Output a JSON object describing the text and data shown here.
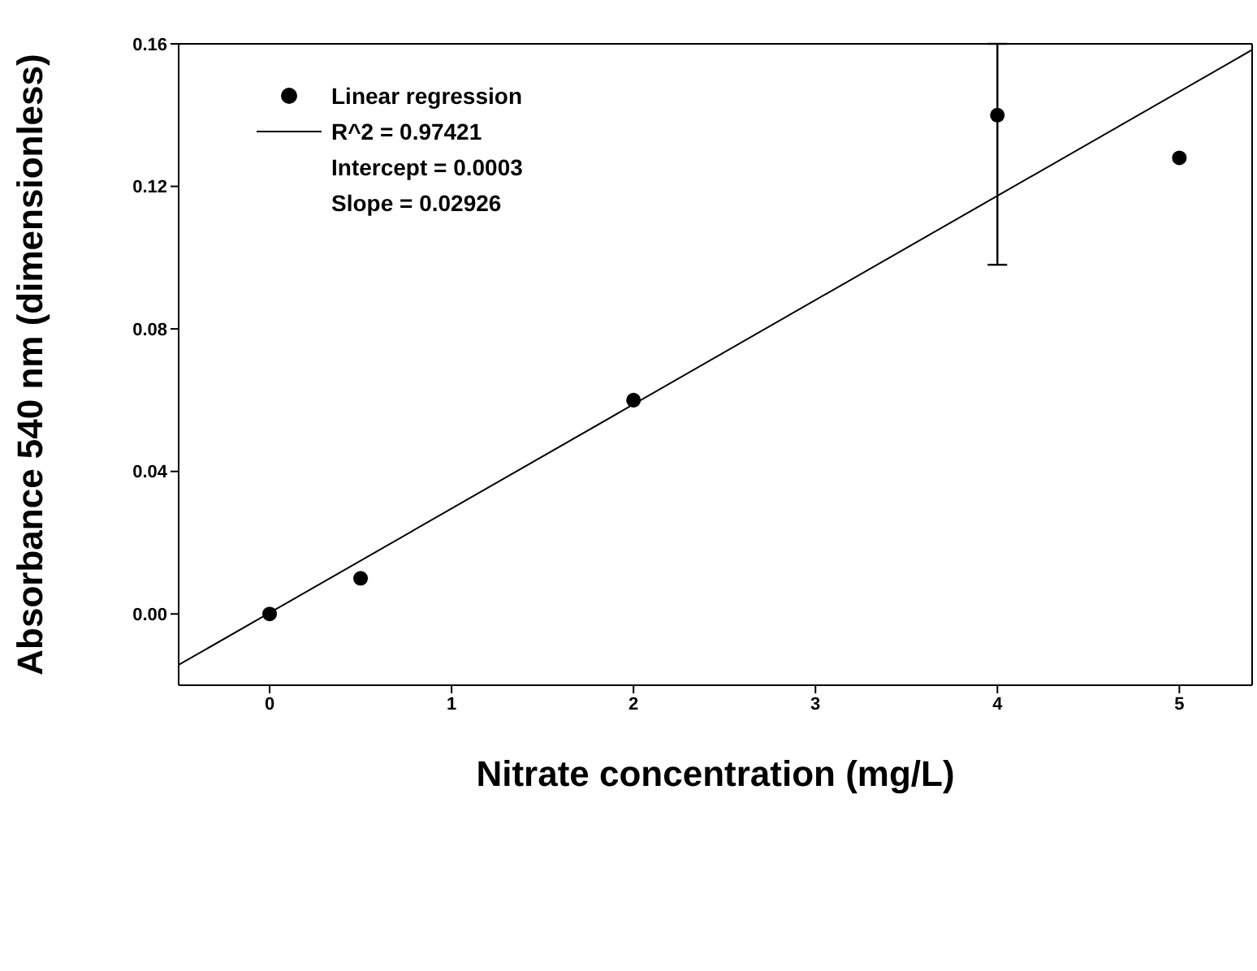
{
  "chart_data": {
    "type": "scatter",
    "xlabel": "Nitrate concentration (mg/L)",
    "ylabel": "Absorbance 540 nm (dimensionless)",
    "xlim": [
      -0.5,
      5.4
    ],
    "xticks": [
      0,
      1,
      2,
      3,
      4,
      5
    ],
    "ylim": [
      -0.02,
      0.16
    ],
    "yticks": [
      {
        "value": 0,
        "label": "0.00"
      },
      {
        "value": 0.04,
        "label": "0.04"
      },
      {
        "value": 0.08,
        "label": "0.08"
      },
      {
        "value": 0.12,
        "label": "0.12"
      },
      {
        "value": 0.16,
        "label": "0.16"
      }
    ],
    "legend": "top left",
    "series": [
      {
        "name": "Linear regression",
        "marker": "circle",
        "color": "#000000",
        "x": [
          0,
          0.5,
          2,
          4,
          5
        ],
        "values": [
          0,
          0.01,
          0.06,
          0.14,
          0.128
        ],
        "errors": [
          null,
          null,
          null,
          [
            0.098,
            0.16
          ],
          null
        ]
      },
      {
        "name": "R^2 = 0.97421",
        "type": "line",
        "color": "#000000",
        "x": [
          -0.5,
          5.4
        ],
        "values": [
          -0.0143,
          0.1583
        ],
        "line_style": "solid"
      }
    ],
    "annotations": [
      "Intercept = 0.0003",
      "Slope = 0.02926"
    ]
  }
}
